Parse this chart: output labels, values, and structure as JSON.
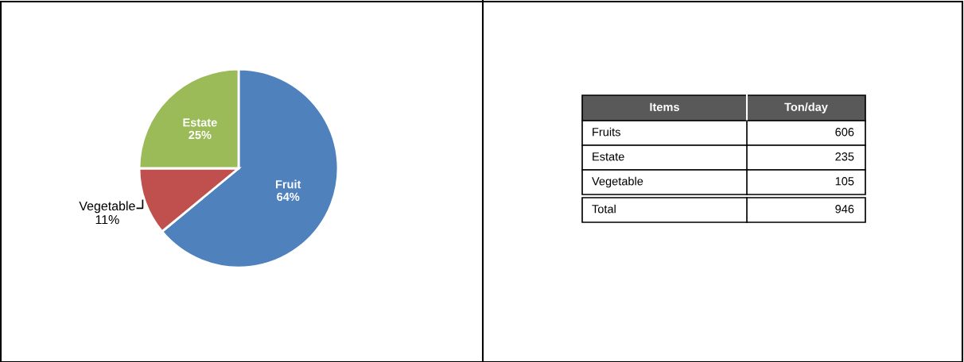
{
  "chart_data": [
    {
      "type": "pie",
      "categories": [
        "Fruit",
        "Vegetable",
        "Estate"
      ],
      "values": [
        64,
        11,
        25
      ],
      "value_labels": [
        "64%",
        "11%",
        "25%"
      ],
      "colors": [
        "#4f81bd",
        "#c0504d",
        "#9bbb59"
      ]
    },
    {
      "type": "other",
      "annotations": [
        "Items",
        "Ton/day",
        "Fruits",
        "606",
        "Estate",
        "235",
        "Vegetable",
        "105",
        "Total",
        "946"
      ]
    }
  ]
}
